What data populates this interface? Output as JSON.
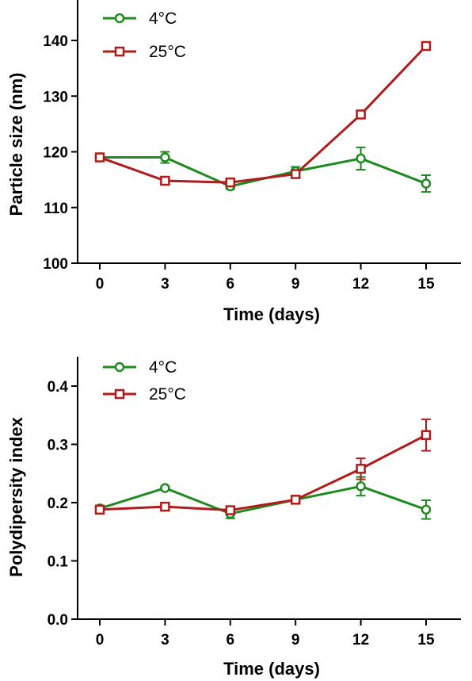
{
  "chart_data": [
    {
      "type": "line",
      "xlabel": "Time (days)",
      "ylabel": "Particle size (nm)",
      "xlim": [
        0,
        15
      ],
      "ylim": [
        100,
        140
      ],
      "x_ticks": [
        0,
        3,
        6,
        9,
        12,
        15
      ],
      "y_ticks": [
        100,
        110,
        120,
        130,
        140
      ],
      "x": [
        0,
        3,
        6,
        9,
        12,
        15
      ],
      "grid": false,
      "legend_position": "top-left",
      "series": [
        {
          "name": "4°C",
          "color": "#1f8a1f",
          "marker": "circle",
          "values": [
            119.0,
            119.0,
            113.8,
            116.5,
            118.8,
            114.3
          ],
          "errors": [
            0.4,
            1.0,
            0.5,
            0.8,
            2.0,
            1.5
          ]
        },
        {
          "name": "25°C",
          "color": "#b01c1c",
          "marker": "square",
          "values": [
            119.0,
            114.8,
            114.5,
            116.0,
            126.7,
            139.0
          ],
          "errors": [
            0.3,
            0.3,
            0.6,
            0.5,
            0.4,
            0.3
          ]
        }
      ]
    },
    {
      "type": "line",
      "xlabel": "Time (days)",
      "ylabel": "Polydipersity index",
      "xlim": [
        0,
        15
      ],
      "ylim": [
        0.0,
        0.4
      ],
      "x_ticks": [
        0,
        3,
        6,
        9,
        12,
        15
      ],
      "y_ticks": [
        "0.0",
        "0.1",
        "0.2",
        "0.3",
        "0.4"
      ],
      "x": [
        0,
        3,
        6,
        9,
        12,
        15
      ],
      "grid": false,
      "legend_position": "top-left",
      "series": [
        {
          "name": "4°C",
          "color": "#1f8a1f",
          "marker": "circle",
          "values": [
            0.19,
            0.225,
            0.181,
            0.205,
            0.228,
            0.188
          ],
          "errors": [
            0.004,
            0.003,
            0.008,
            0.004,
            0.016,
            0.016
          ]
        },
        {
          "name": "25°C",
          "color": "#b01c1c",
          "marker": "square",
          "values": [
            0.188,
            0.193,
            0.187,
            0.205,
            0.258,
            0.316
          ],
          "errors": [
            0.003,
            0.003,
            0.004,
            0.003,
            0.018,
            0.027
          ]
        }
      ]
    }
  ]
}
